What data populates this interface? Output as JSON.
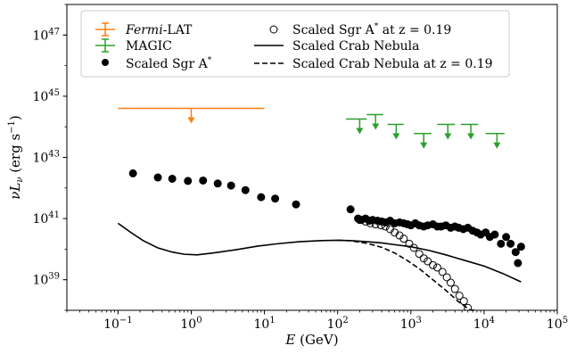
{
  "chart_data": {
    "type": "scatter",
    "xlabel_italic": "E",
    "xlabel_rest": "(GeV)",
    "ylabel_main": "νL",
    "ylabel_sub": "ν",
    "ylabel_rest": " (erg s",
    "ylabel_exp": "−1",
    "ylabel_close": ")",
    "x_scale": "log",
    "y_scale": "log",
    "xlim": [
      0.02,
      100000
    ],
    "ylim": [
      1e+38,
      1e+48
    ],
    "x_ticks": [
      {
        "base": "10",
        "exp": "−1",
        "value": 0.1
      },
      {
        "base": "10",
        "exp": "0",
        "value": 1
      },
      {
        "base": "10",
        "exp": "1",
        "value": 10
      },
      {
        "base": "10",
        "exp": "2",
        "value": 100
      },
      {
        "base": "10",
        "exp": "3",
        "value": 1000
      },
      {
        "base": "10",
        "exp": "4",
        "value": 10000
      },
      {
        "base": "10",
        "exp": "5",
        "value": 100000
      }
    ],
    "y_ticks": [
      {
        "base": "10",
        "exp": "39",
        "value": 1e+39
      },
      {
        "base": "10",
        "exp": "41",
        "value": 1e+41
      },
      {
        "base": "10",
        "exp": "43",
        "value": 1e+43
      },
      {
        "base": "10",
        "exp": "45",
        "value": 1e+45
      },
      {
        "base": "10",
        "exp": "47",
        "value": 1e+47
      }
    ],
    "legend": {
      "position": "top-left",
      "entries": [
        {
          "key": "fermi",
          "label_italic": "Fermi",
          "label_rest": "-LAT",
          "label_sup": ""
        },
        {
          "key": "magic",
          "label_italic": "",
          "label_rest": "MAGIC",
          "label_sup": ""
        },
        {
          "key": "sgr",
          "label_italic": "",
          "label_rest": "Scaled Sgr A",
          "label_sup": "*"
        },
        {
          "key": "sgr_z",
          "label_italic": "",
          "label_rest": "Scaled Sgr A",
          "label_sup": "*",
          "label_tail": " at z = 0.19"
        },
        {
          "key": "crab",
          "label_italic": "",
          "label_rest": "Scaled Crab Nebula",
          "label_sup": ""
        },
        {
          "key": "crab_z",
          "label_italic": "",
          "label_rest": "Scaled Crab Nebula at z = 0.19",
          "label_sup": ""
        }
      ]
    },
    "series": [
      {
        "key": "fermi",
        "kind": "upper_limit",
        "color": "#ff7f0e",
        "points": [
          {
            "x": 1,
            "y": 4e+44,
            "xlo": 0.1,
            "xhi": 10
          }
        ]
      },
      {
        "key": "magic",
        "kind": "upper_limit",
        "color": "#2ca02c",
        "points": [
          {
            "x": 200,
            "y": 1.8e+44,
            "xlo": 130,
            "xhi": 250
          },
          {
            "x": 330,
            "y": 2.5e+44,
            "xlo": 250,
            "xhi": 420
          },
          {
            "x": 630,
            "y": 1.2e+44,
            "xlo": 480,
            "xhi": 800
          },
          {
            "x": 1500,
            "y": 6e+43,
            "xlo": 1100,
            "xhi": 1900
          },
          {
            "x": 3200,
            "y": 1.2e+44,
            "xlo": 2300,
            "xhi": 4000
          },
          {
            "x": 6600,
            "y": 1.2e+44,
            "xlo": 4800,
            "xhi": 8300
          },
          {
            "x": 15000,
            "y": 6e+43,
            "xlo": 10500,
            "xhi": 19000
          }
        ]
      },
      {
        "key": "sgr",
        "kind": "filled",
        "color": "#000000",
        "points": [
          [
            0.16,
            3e+42
          ],
          [
            0.35,
            2.2e+42
          ],
          [
            0.55,
            2e+42
          ],
          [
            0.9,
            1.7e+42
          ],
          [
            1.45,
            1.75e+42
          ],
          [
            2.3,
            1.4e+42
          ],
          [
            3.5,
            1.2e+42
          ],
          [
            5.5,
            8.5e+41
          ],
          [
            9,
            5e+41
          ],
          [
            14,
            4.5e+41
          ],
          [
            27,
            2.9e+41
          ],
          [
            150,
            2e+41
          ],
          [
            190,
            1e+41
          ],
          [
            210,
            9e+40
          ],
          [
            240,
            1e+41
          ],
          [
            270,
            8.5e+40
          ],
          [
            300,
            9e+40
          ],
          [
            350,
            8.5e+40
          ],
          [
            400,
            8e+40
          ],
          [
            450,
            7.5e+40
          ],
          [
            520,
            8.5e+40
          ],
          [
            600,
            7e+40
          ],
          [
            700,
            7.5e+40
          ],
          [
            800,
            7e+40
          ],
          [
            900,
            6.5e+40
          ],
          [
            1000,
            6e+40
          ],
          [
            1150,
            7e+40
          ],
          [
            1300,
            6e+40
          ],
          [
            1500,
            5.5e+40
          ],
          [
            1700,
            6e+40
          ],
          [
            2000,
            6.5e+40
          ],
          [
            2300,
            5.5e+40
          ],
          [
            2600,
            5.5e+40
          ],
          [
            3000,
            6e+40
          ],
          [
            3500,
            5e+40
          ],
          [
            4000,
            5.5e+40
          ],
          [
            4500,
            5e+40
          ],
          [
            5200,
            4.5e+40
          ],
          [
            6000,
            5e+40
          ],
          [
            7000,
            4e+40
          ],
          [
            8000,
            3.5e+40
          ],
          [
            9000,
            3e+40
          ],
          [
            10500,
            3.5e+40
          ],
          [
            12000,
            2.5e+40
          ],
          [
            14000,
            3e+40
          ],
          [
            17000,
            1.5e+40
          ],
          [
            20000,
            2.5e+40
          ],
          [
            23000,
            1.5e+40
          ],
          [
            27000,
            8e+39
          ],
          [
            29000,
            3.5e+39
          ],
          [
            32000,
            1.2e+40
          ]
        ]
      },
      {
        "key": "sgr_z",
        "kind": "open",
        "color": "#000000",
        "points": [
          [
            200,
            9e+40
          ],
          [
            240,
            8e+40
          ],
          [
            280,
            7e+40
          ],
          [
            330,
            6.5e+40
          ],
          [
            390,
            6e+40
          ],
          [
            450,
            5.5e+40
          ],
          [
            520,
            4.5e+40
          ],
          [
            600,
            3.5e+40
          ],
          [
            700,
            2.8e+40
          ],
          [
            800,
            2.2e+40
          ],
          [
            950,
            1.5e+40
          ],
          [
            1100,
            1.1e+40
          ],
          [
            1300,
            7e+39
          ],
          [
            1500,
            5e+39
          ],
          [
            1700,
            4e+39
          ],
          [
            2000,
            3e+39
          ],
          [
            2300,
            2.5e+39
          ],
          [
            2700,
            1.8e+39
          ],
          [
            3100,
            1.2e+39
          ],
          [
            3500,
            8e+38
          ],
          [
            4000,
            5e+38
          ],
          [
            4600,
            3e+38
          ],
          [
            5300,
            2e+38
          ],
          [
            6000,
            1.2e+38
          ],
          [
            7000,
            8e+37
          ],
          [
            8000,
            6e+37
          ]
        ]
      },
      {
        "key": "crab",
        "kind": "line",
        "dash": "",
        "color": "#000000",
        "points": [
          [
            0.1,
            7e+40
          ],
          [
            0.15,
            3.5e+40
          ],
          [
            0.22,
            1.9e+40
          ],
          [
            0.35,
            1.1e+40
          ],
          [
            0.55,
            8e+39
          ],
          [
            0.8,
            6.8e+39
          ],
          [
            1.2,
            6.5e+39
          ],
          [
            2,
            7.5e+39
          ],
          [
            4,
            9.5e+39
          ],
          [
            8,
            1.25e+40
          ],
          [
            15,
            1.5e+40
          ],
          [
            30,
            1.75e+40
          ],
          [
            60,
            1.9e+40
          ],
          [
            100,
            1.95e+40
          ],
          [
            150,
            1.9e+40
          ],
          [
            250,
            1.75e+40
          ],
          [
            400,
            1.6e+40
          ],
          [
            600,
            1.4e+40
          ],
          [
            1000,
            1.2e+40
          ],
          [
            1800,
            9e+39
          ],
          [
            3000,
            6.5e+39
          ],
          [
            6000,
            4e+39
          ],
          [
            10000,
            2.8e+39
          ],
          [
            18000,
            1.6e+39
          ],
          [
            32000,
            8.5e+38
          ]
        ]
      },
      {
        "key": "crab_z",
        "kind": "line",
        "dash": "6 3",
        "color": "#000000",
        "points": [
          [
            100,
            1.95e+40
          ],
          [
            150,
            1.88e+40
          ],
          [
            250,
            1.55e+40
          ],
          [
            400,
            1.15e+40
          ],
          [
            600,
            7.5e+39
          ],
          [
            900,
            4.2e+39
          ],
          [
            1300,
            2.3e+39
          ],
          [
            2000,
            1e+39
          ],
          [
            3000,
            4.5e+38
          ],
          [
            4500,
            1.9e+38
          ],
          [
            6500,
            1e+38
          ],
          [
            7500,
            7e+37
          ]
        ]
      }
    ]
  }
}
